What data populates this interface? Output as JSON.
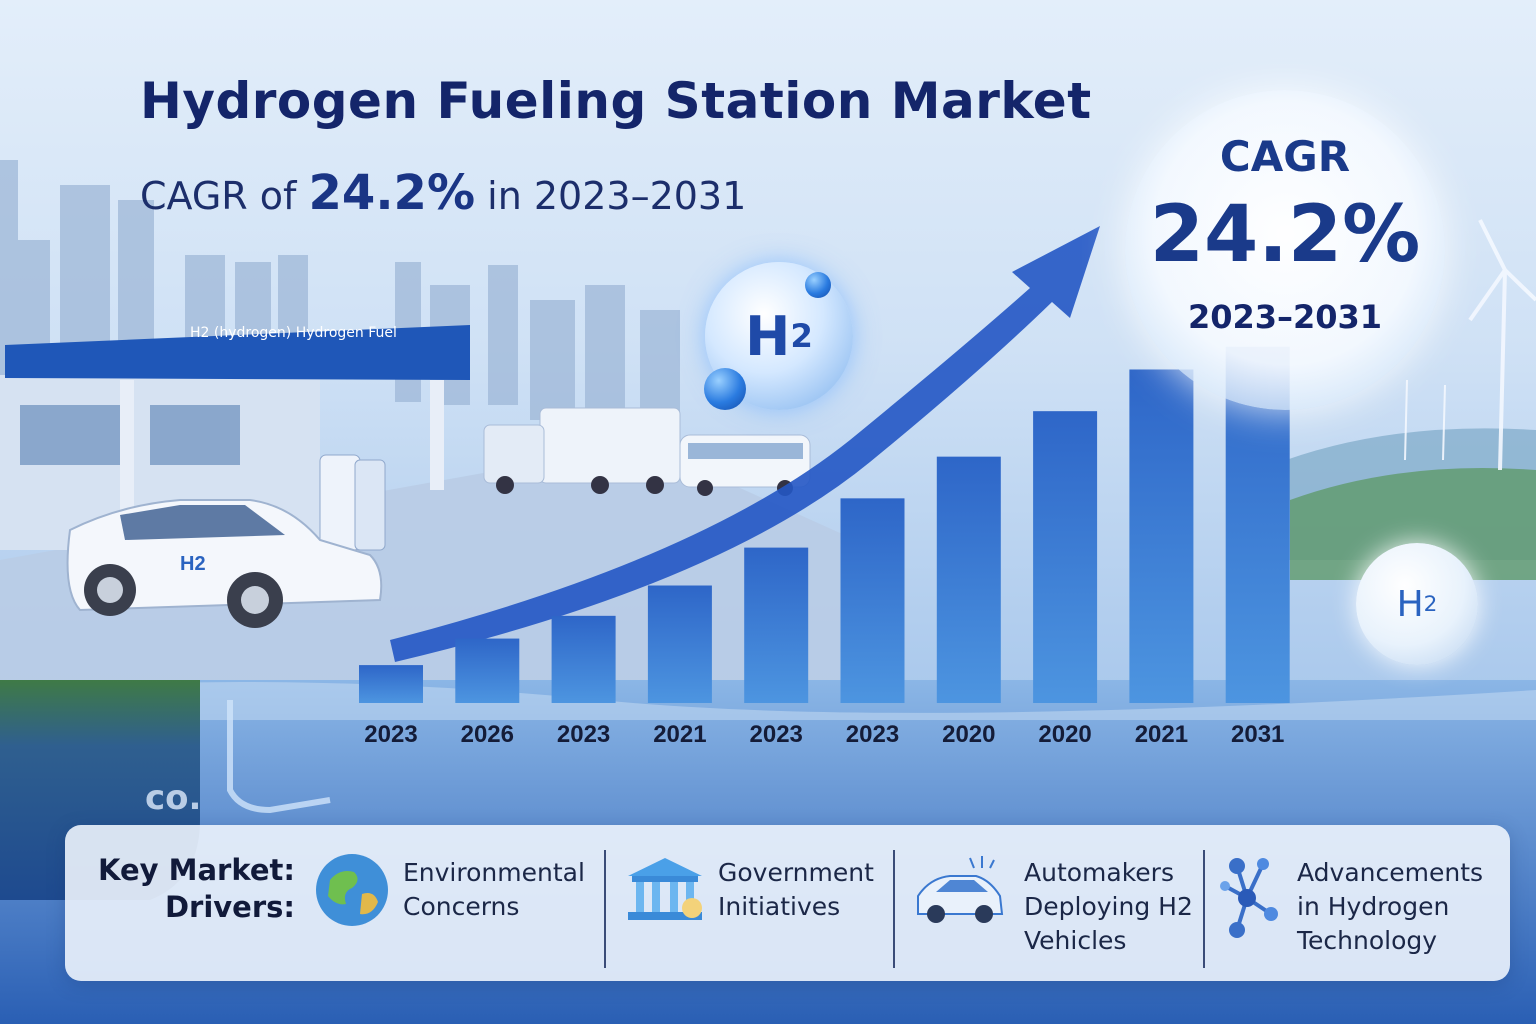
{
  "header": {
    "title": "Hydrogen Fueling Station Market",
    "subtitle_prefix": "CAGR of",
    "subtitle_value": "24.2%",
    "subtitle_suffix": "in 2023–2031"
  },
  "cagr_badge": {
    "label": "CAGR",
    "value": "24.2%",
    "period": "2023–2031"
  },
  "illustration": {
    "station_sign": "H2 (hydrogen) Hydrogen Fuel",
    "car_badge": "H2",
    "bubble_main": "H",
    "bubble_main_sub": "2",
    "bubble_side": "H",
    "bubble_side_sub": "2",
    "co_label": "co."
  },
  "chart_data": {
    "type": "bar",
    "categories": [
      "2023",
      "2026",
      "2023",
      "2021",
      "2023",
      "2023",
      "2020",
      "2020",
      "2021",
      "2031"
    ],
    "values": [
      1.0,
      1.7,
      2.3,
      3.1,
      4.1,
      5.4,
      6.5,
      7.7,
      8.8,
      9.4
    ],
    "ylim": [
      0,
      10
    ],
    "bar_color": "#2f6fcf",
    "trend_arrow_color": "#2456c4",
    "grid": false,
    "legend": "none"
  },
  "drivers": {
    "heading_line1": "Key Market:",
    "heading_line2": "Drivers:",
    "items": [
      {
        "icon": "globe-icon",
        "lines": [
          "Environmental",
          "Concerns"
        ]
      },
      {
        "icon": "government-building-icon",
        "lines": [
          "Government",
          "Initiatives"
        ]
      },
      {
        "icon": "car-icon",
        "lines": [
          "Automakers",
          "Deploying H2",
          "Vehicles"
        ]
      },
      {
        "icon": "molecule-icon",
        "lines": [
          "Advancements",
          "in Hydrogen",
          "Technology"
        ]
      }
    ]
  },
  "colors": {
    "title": "#14256a",
    "accent": "#1a3a8a",
    "bar": "#2f6fcf"
  }
}
